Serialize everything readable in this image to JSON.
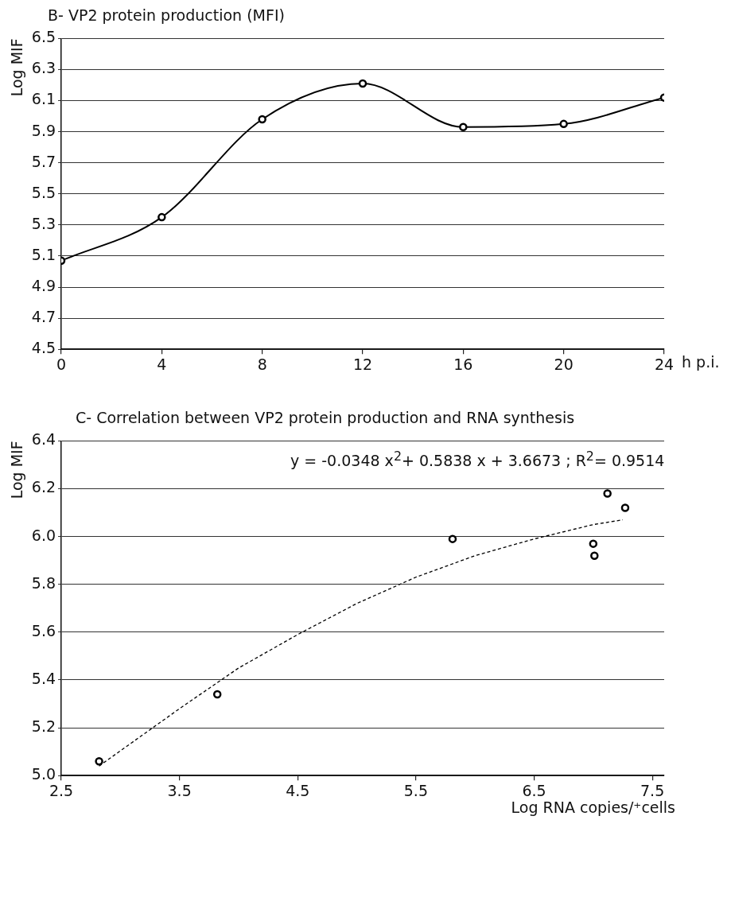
{
  "chart_data": [
    {
      "type": "line",
      "title": "B- VP2 protein production (MFI)",
      "xlabel": "h p.i.",
      "ylabel": "Log MIF",
      "x": [
        0,
        4,
        8,
        12,
        16,
        20,
        24
      ],
      "series": [
        {
          "color": "#000000",
          "values": [
            5.07,
            5.35,
            5.98,
            6.21,
            5.93,
            5.95,
            6.12
          ]
        }
      ],
      "xlim": [
        0,
        24
      ],
      "xticks": [
        0,
        4,
        8,
        12,
        16,
        20,
        24
      ],
      "ylim": [
        4.5,
        6.5
      ],
      "yticks": [
        4.5,
        4.7,
        4.9,
        5.1,
        5.3,
        5.5,
        5.7,
        5.9,
        6.1,
        6.3,
        6.5
      ],
      "grid": "y",
      "legend": false,
      "marker": "circle",
      "line_style": "solid"
    },
    {
      "type": "scatter",
      "title": "C- Correlation between VP2 protein production and RNA synthesis",
      "xlabel": "Log RNA copies/⁺cells",
      "ylabel": "Log MIF",
      "annotations": [
        "y = -0.0348 x$^{2}$+ 0.5838 x + 3.6673 ;  R$^{2}$= 0.9514"
      ],
      "series": [
        {
          "type": "scatter",
          "color": "#000000",
          "x": [
            2.82,
            3.82,
            5.81,
            7.0,
            7.01,
            7.12,
            7.27
          ],
          "values": [
            5.06,
            5.34,
            5.99,
            5.97,
            5.92,
            6.18,
            6.12
          ],
          "marker": "circle"
        },
        {
          "type": "line",
          "color": "#000000",
          "x": [
            2.82,
            3.5,
            4.0,
            4.5,
            5.0,
            5.5,
            6.0,
            6.5,
            7.0,
            7.25
          ],
          "values": [
            5.04,
            5.28,
            5.45,
            5.59,
            5.72,
            5.83,
            5.92,
            5.99,
            6.05,
            6.07
          ],
          "marker": "none",
          "line_style": "dashed"
        }
      ],
      "xlim": [
        2.5,
        7.6
      ],
      "xticks": [
        2.5,
        3.5,
        4.5,
        5.5,
        6.5,
        7.5
      ],
      "ylim": [
        5.0,
        6.4
      ],
      "yticks": [
        {
          "value": 5,
          "label": "5.0"
        },
        5.2,
        5.4,
        5.6,
        5.8,
        {
          "value": 6,
          "label": "6.0"
        },
        6.2,
        6.4
      ],
      "grid": "y",
      "legend": false
    }
  ]
}
